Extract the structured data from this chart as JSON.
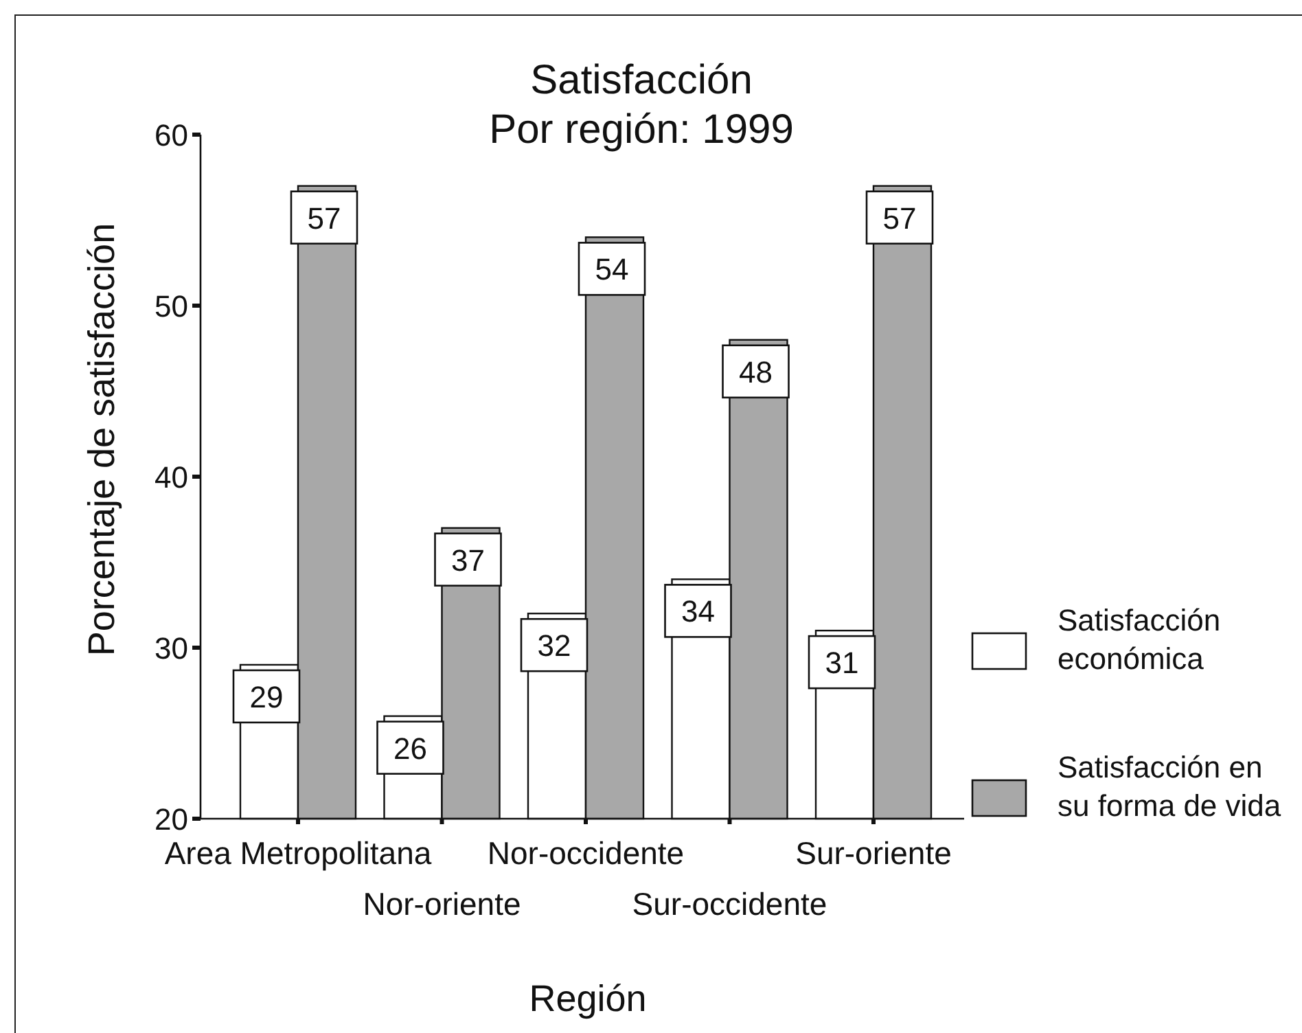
{
  "chart_data": {
    "type": "bar",
    "title": "Satisfacción",
    "subtitle": "Por región: 1999",
    "xlabel": "Región",
    "ylabel": "Porcentaje de satisfacción",
    "categories": [
      "Area Metropolitana",
      "Nor-oriente",
      "Nor-occidente",
      "Sur-occidente",
      "Sur-oriente"
    ],
    "series": [
      {
        "name": "Satisfacción económica",
        "color": "#ffffff",
        "values": [
          29,
          26,
          32,
          34,
          31
        ]
      },
      {
        "name": "Satisfacción en su forma de vida",
        "color": "#a8a8a8",
        "values": [
          57,
          37,
          54,
          48,
          57
        ]
      }
    ],
    "ylim": [
      20,
      60
    ],
    "yticks": [
      20,
      30,
      40,
      50,
      60
    ],
    "data_labels": true,
    "legend": "right"
  }
}
